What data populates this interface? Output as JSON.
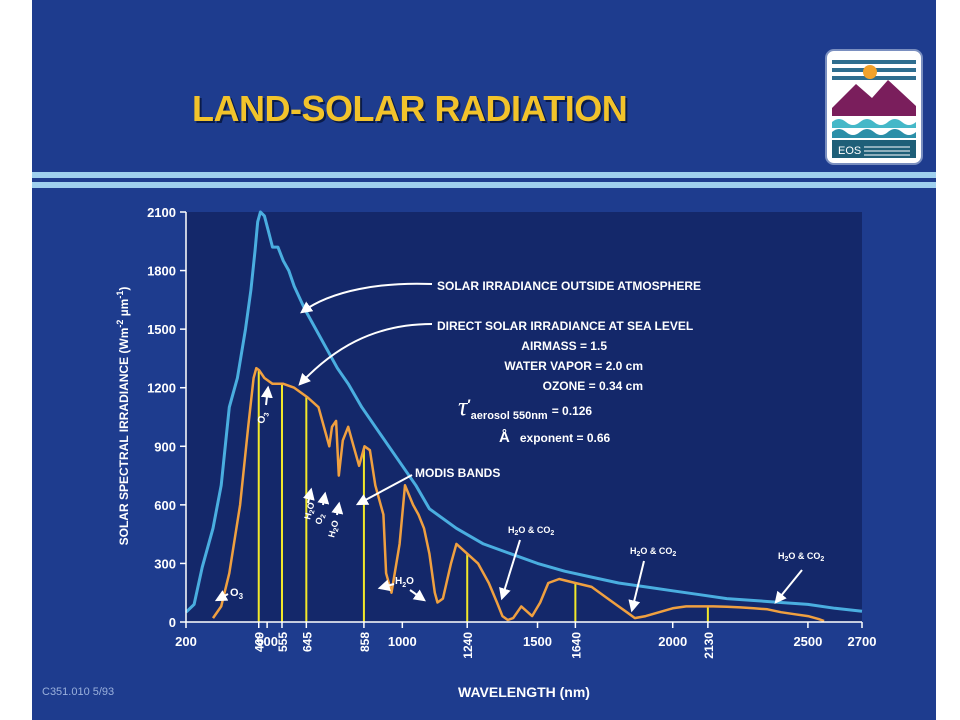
{
  "slide": {
    "title": "LAND-SOLAR RADIATION",
    "footer": "C351.010  5/93",
    "logo_text": "EOS"
  },
  "colors": {
    "background": "#1e3c8e",
    "plot_area": "#14286a",
    "outside_curve": "#4aaee0",
    "sea_level_curve": "#f0a040",
    "modis_bands": "#f2e82a",
    "text": "#ffffff",
    "title": "#f2c32b"
  },
  "chart_data": {
    "type": "line",
    "title": "",
    "xlabel": "WAVELENGTH (nm)",
    "ylabel_parts": [
      "SOLAR SPECTRAL IRRADIANCE (Wm",
      "-2",
      " µm",
      "-1",
      ")"
    ],
    "xlim": [
      200,
      2700
    ],
    "ylim": [
      0,
      2100
    ],
    "x_ticks": [
      200,
      500,
      1000,
      1500,
      2000,
      2500,
      2700
    ],
    "y_ticks": [
      0,
      300,
      600,
      900,
      1200,
      1500,
      1800,
      2100
    ],
    "grid": false,
    "series": [
      {
        "name": "SOLAR IRRADIANCE OUTSIDE ATMOSPHERE",
        "color_key": "outside_curve",
        "x": [
          200,
          230,
          260,
          300,
          330,
          360,
          390,
          420,
          440,
          455,
          465,
          475,
          490,
          505,
          520,
          540,
          560,
          580,
          600,
          640,
          680,
          720,
          760,
          800,
          850,
          900,
          950,
          1000,
          1050,
          1100,
          1200,
          1300,
          1400,
          1500,
          1600,
          1700,
          1800,
          1900,
          2000,
          2100,
          2200,
          2300,
          2400,
          2500,
          2600,
          2700
        ],
        "values": [
          50,
          90,
          280,
          480,
          700,
          1100,
          1250,
          1500,
          1700,
          1900,
          2050,
          2100,
          2080,
          2000,
          1920,
          1920,
          1850,
          1800,
          1720,
          1600,
          1500,
          1400,
          1300,
          1220,
          1100,
          1000,
          900,
          800,
          700,
          580,
          480,
          400,
          350,
          300,
          260,
          230,
          200,
          180,
          160,
          140,
          120,
          110,
          100,
          90,
          70,
          55
        ]
      },
      {
        "name": "DIRECT SOLAR IRRADIANCE AT SEA LEVEL",
        "color_key": "sea_level_curve",
        "x": [
          300,
          330,
          360,
          400,
          430,
          450,
          460,
          470,
          490,
          520,
          560,
          600,
          650,
          690,
          720,
          730,
          740,
          755,
          765,
          780,
          800,
          820,
          840,
          860,
          880,
          900,
          920,
          930,
          940,
          960,
          990,
          1010,
          1040,
          1060,
          1080,
          1100,
          1120,
          1130,
          1150,
          1180,
          1200,
          1240,
          1280,
          1320,
          1350,
          1370,
          1390,
          1410,
          1440,
          1480,
          1510,
          1540,
          1580,
          1640,
          1700,
          1760,
          1800,
          1830,
          1860,
          1900,
          1950,
          2000,
          2050,
          2100,
          2150,
          2200,
          2250,
          2300,
          2350,
          2400,
          2450,
          2500,
          2540,
          2560
        ],
        "values": [
          20,
          80,
          250,
          600,
          1000,
          1250,
          1300,
          1290,
          1250,
          1220,
          1220,
          1200,
          1150,
          1100,
          950,
          900,
          1000,
          1030,
          750,
          930,
          1000,
          900,
          800,
          900,
          880,
          700,
          600,
          550,
          250,
          150,
          400,
          700,
          600,
          550,
          480,
          350,
          150,
          100,
          120,
          300,
          400,
          350,
          300,
          200,
          100,
          30,
          10,
          20,
          80,
          30,
          100,
          200,
          220,
          200,
          180,
          120,
          80,
          50,
          20,
          30,
          50,
          70,
          80,
          80,
          80,
          78,
          75,
          70,
          65,
          50,
          40,
          30,
          15,
          5
        ]
      }
    ],
    "modis_bands": {
      "name": "MODIS BANDS",
      "centers": [
        469,
        555,
        645,
        858,
        1240,
        1640,
        2130
      ],
      "tick_labels": [
        "469",
        "555",
        "645",
        "858",
        "1240",
        "1640",
        "2130"
      ]
    },
    "annotations": {
      "outside_label": "SOLAR IRRADIANCE OUTSIDE ATMOSPHERE",
      "sea_level_label": "DIRECT SOLAR IRRADIANCE AT SEA LEVEL",
      "airmass": "AIRMASS = 1.5",
      "water_vapor": "WATER VAPOR = 2.0 cm",
      "ozone": "OZONE = 0.34 cm",
      "tau_symbol": "τ",
      "tau_prime": "′",
      "tau_sub": "aerosol 550nm",
      "tau_value": "= 0.126",
      "angstrom_symbol": "Å",
      "angstrom_text": "exponent = 0.66",
      "modis_label": "MODIS BANDS",
      "o3_base": "O",
      "o3_sub": "3",
      "h2o_base": "H",
      "h2o_sub": "2",
      "h2o_end": "O",
      "o2_base": "O",
      "o2_sub": "2",
      "h2o_co2_parts": [
        "H",
        "2",
        "O & CO",
        "2"
      ]
    }
  }
}
